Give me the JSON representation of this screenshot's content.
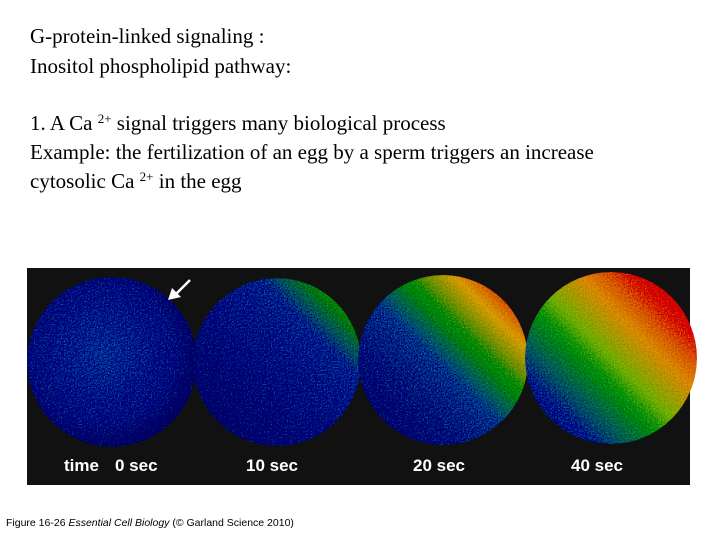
{
  "title": {
    "lines": [
      "G-protein-linked signaling :",
      "Inositol phospholipid pathway:"
    ]
  },
  "body": {
    "point": {
      "before": "1. A Ca ",
      "sup": "2+",
      "after": " signal triggers many biological process"
    },
    "example": {
      "line1": "Example: the fertilization of an egg by a sperm triggers an increase",
      "line2_before": "cytosolic Ca ",
      "sup": "2+",
      "after": " in the egg"
    }
  },
  "figure": {
    "labels": [
      "time",
      "0 sec",
      "10 sec",
      "20 sec",
      "40 sec"
    ]
  },
  "caption": {
    "figure": "Figure 16-26",
    "book": "Essential Cell Biology",
    "credit": "(© Garland Science 2010)"
  }
}
